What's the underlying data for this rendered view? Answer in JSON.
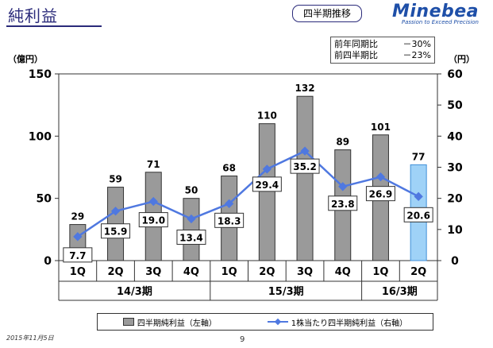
{
  "header": {
    "title": "純利益",
    "badge": "四半期推移",
    "brand_name": "Minebea",
    "brand_tagline": "Passion to Exceed Precision"
  },
  "comparison": [
    {
      "label": "前年同期比",
      "value": "－30%"
    },
    {
      "label": "前四半期比",
      "value": "－23%"
    }
  ],
  "units": {
    "left": "（億円）",
    "right": "（円）"
  },
  "footer": {
    "date": "2015年11月5日",
    "page": "9"
  },
  "colors": {
    "bar": "#9a9a9a",
    "bar_highlight": "#9fd2f7",
    "line": "#4f78e0",
    "title": "#2a2a7a"
  },
  "chart_data": {
    "type": "bar",
    "categories": [
      "1Q",
      "2Q",
      "3Q",
      "4Q",
      "1Q",
      "2Q",
      "3Q",
      "4Q",
      "1Q",
      "2Q"
    ],
    "groups": [
      {
        "label": "14/3期",
        "count": 4
      },
      {
        "label": "15/3期",
        "count": 4
      },
      {
        "label": "16/3期",
        "count": 2
      }
    ],
    "series": [
      {
        "name": "四半期純利益（左軸）",
        "type": "bar",
        "axis": "left",
        "values": [
          29,
          59,
          71,
          50,
          68,
          110,
          132,
          89,
          101,
          77
        ]
      },
      {
        "name": "1株当たり四半期純利益（右軸）",
        "type": "line",
        "axis": "right",
        "values": [
          7.7,
          15.9,
          19.0,
          13.4,
          18.3,
          29.4,
          35.2,
          23.8,
          26.9,
          20.6
        ]
      }
    ],
    "bar_labels": [
      "29",
      "59",
      "71",
      "50",
      "68",
      "110",
      "132",
      "89",
      "101",
      "77"
    ],
    "line_labels": [
      "7.7",
      "15.9",
      "19.0",
      "13.4",
      "18.3",
      "29.4",
      "35.2",
      "23.8",
      "26.9",
      "20.6"
    ],
    "highlight_index": 9,
    "y_left": {
      "min": 0,
      "max": 150,
      "ticks": [
        0,
        50,
        100,
        150
      ]
    },
    "y_right": {
      "min": 0,
      "max": 60,
      "ticks": [
        0,
        10,
        20,
        30,
        40,
        50,
        60
      ]
    },
    "legend_position": "bottom"
  }
}
